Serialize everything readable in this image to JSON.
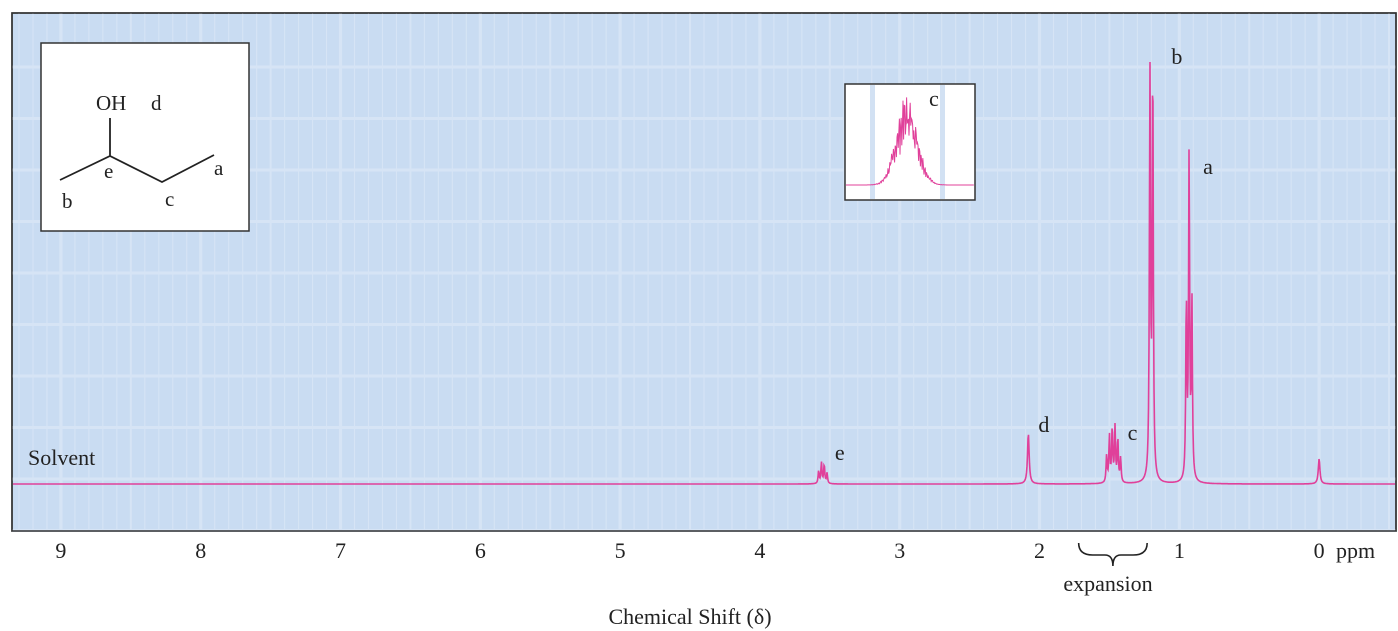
{
  "chart_data": {
    "type": "line",
    "xlabel": "Chemical Shift (δ)",
    "x_unit": "ppm",
    "xlim": [
      9.35,
      -0.55
    ],
    "x_reversed": true,
    "x_ticks": [
      9,
      8,
      7,
      6,
      5,
      4,
      3,
      2,
      1,
      0
    ],
    "grid": true,
    "grid_color": "#d6e4f5",
    "line_color": "#e0409a",
    "solvent_label": "Solvent",
    "expansion_label": "expansion",
    "expansion_range": [
      1.72,
      1.23
    ],
    "peaks": [
      {
        "label": "e",
        "shift": 3.55,
        "height": 0.05,
        "multiplet": [
          3.58,
          3.56,
          3.54,
          3.52
        ]
      },
      {
        "label": "d",
        "shift": 2.08,
        "height": 0.12
      },
      {
        "label": "c",
        "shift": 1.47,
        "height": 0.13,
        "multiplet": [
          1.52,
          1.5,
          1.48,
          1.46,
          1.44,
          1.42
        ]
      },
      {
        "label": "b",
        "shift": 1.2,
        "height": 1.0,
        "multiplet": [
          1.21,
          1.19
        ]
      },
      {
        "label": "a",
        "shift": 0.93,
        "height": 0.77,
        "multiplet": [
          0.95,
          0.93,
          0.91
        ]
      },
      {
        "label": "",
        "shift": 0.0,
        "height": 0.06
      }
    ],
    "inset": {
      "label": "c"
    },
    "molecule": {
      "oh_label": "OH",
      "labels": {
        "a": "a",
        "b": "b",
        "c": "c",
        "d": "d",
        "e": "e"
      }
    }
  }
}
